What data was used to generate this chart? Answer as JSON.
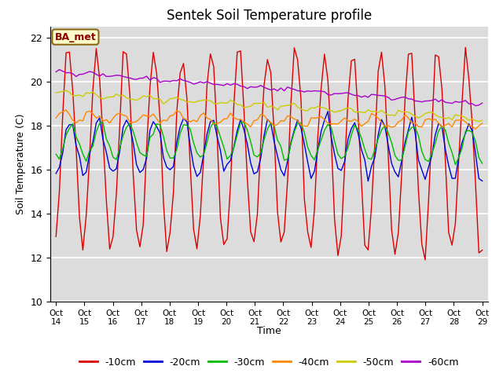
{
  "title": "Sentek Soil Temperature profile",
  "xlabel": "Time",
  "ylabel": "Soil Temperature (C)",
  "ylim": [
    10,
    22.5
  ],
  "background_color": "#dcdcdc",
  "fig_background": "#ffffff",
  "annotation": "BA_met",
  "x_tick_labels": [
    "Oct\n14",
    "Oct\n15",
    "Oct\n16",
    "Oct\n17",
    "Oct\n18",
    "Oct\n19",
    "Oct\n20",
    "Oct\n21",
    "Oct\n22",
    "Oct\n23",
    "Oct\n24",
    "Oct\n25",
    "Oct\n26",
    "Oct\n27",
    "Oct\n28",
    "Oct\n29"
  ],
  "series_colors": {
    "-10cm": "#dd0000",
    "-20cm": "#0000dd",
    "-30cm": "#00bb00",
    "-40cm": "#ff8800",
    "-50cm": "#cccc00",
    "-60cm": "#aa00cc"
  },
  "legend_order": [
    "-10cm",
    "-20cm",
    "-30cm",
    "-40cm",
    "-50cm",
    "-60cm"
  ],
  "gridlines_y": [
    10,
    12,
    14,
    16,
    18,
    20,
    22
  ],
  "n_days": 16,
  "pts_per_day": 8
}
